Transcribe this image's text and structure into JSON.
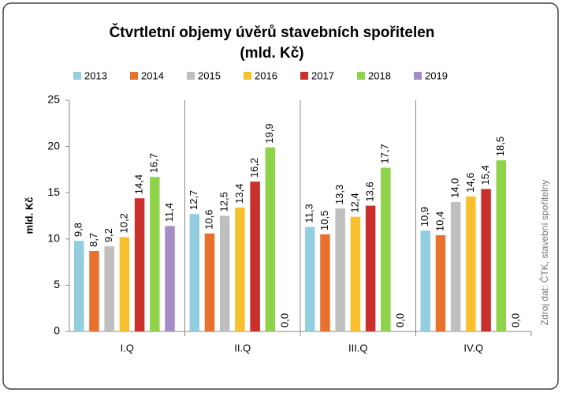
{
  "chart_data": {
    "type": "bar",
    "title": [
      "Čtvrtletní objemy úvěrů stavebních spořitelen",
      "(mld. Kč)"
    ],
    "y_label": "mld. Kč",
    "source": "Zdroj dat: ČTK, stavební spořitelny",
    "categories": [
      "I.Q",
      "II.Q",
      "III.Q",
      "IV.Q"
    ],
    "series": [
      {
        "name": "2013",
        "color": "#92cde0",
        "values": [
          9.8,
          12.7,
          11.3,
          10.9
        ],
        "value_labels": [
          "9,8",
          "12,7",
          "11,3",
          "10,9"
        ]
      },
      {
        "name": "2014",
        "color": "#e8712d",
        "values": [
          8.7,
          10.6,
          10.5,
          10.4
        ],
        "value_labels": [
          "8,7",
          "10,6",
          "10,5",
          "10,4"
        ]
      },
      {
        "name": "2015",
        "color": "#bfbfbf",
        "values": [
          9.2,
          12.5,
          13.3,
          14.0
        ],
        "value_labels": [
          "9,2",
          "12,5",
          "13,3",
          "14,0"
        ]
      },
      {
        "name": "2016",
        "color": "#f9c02e",
        "values": [
          10.2,
          13.4,
          12.4,
          14.6
        ],
        "value_labels": [
          "10,2",
          "13,4",
          "12,4",
          "14,6"
        ]
      },
      {
        "name": "2017",
        "color": "#c9302c",
        "values": [
          14.4,
          16.2,
          13.6,
          15.4
        ],
        "value_labels": [
          "14,4",
          "16,2",
          "13,6",
          "15,4"
        ]
      },
      {
        "name": "2018",
        "color": "#8ed34a",
        "values": [
          16.7,
          19.9,
          17.7,
          18.5
        ],
        "value_labels": [
          "16,7",
          "19,9",
          "17,7",
          "18,5"
        ]
      },
      {
        "name": "2019",
        "color": "#a58cc7",
        "values": [
          11.4,
          0.0,
          0.0,
          0.0
        ],
        "value_labels": [
          "11,4",
          "0,0",
          "0,0",
          "0,0"
        ]
      }
    ],
    "ylim": [
      0,
      25
    ],
    "yticks": [
      0,
      5,
      10,
      15,
      20,
      25
    ],
    "legend": "top"
  }
}
